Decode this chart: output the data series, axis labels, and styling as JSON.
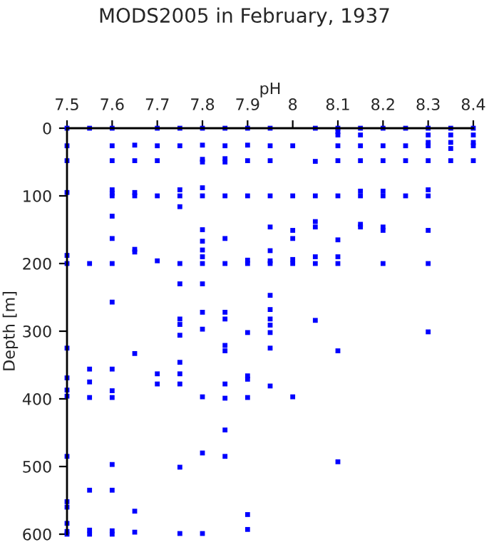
{
  "chart_data": {
    "type": "scatter",
    "title": "MODS2005 in February, 1937",
    "xlabel": "pH",
    "ylabel": "Depth [m]",
    "xlim": [
      7.5,
      8.4
    ],
    "xticks": [
      7.5,
      7.6,
      7.7,
      7.8,
      7.9,
      {
        "value": 8.0,
        "label": "8"
      },
      8.1,
      8.2,
      8.3,
      8.4
    ],
    "ylim": [
      600,
      0
    ],
    "yticks": [
      0,
      100,
      200,
      300,
      400,
      500,
      600
    ],
    "grid": false,
    "marker": "square",
    "series": [
      {
        "color": "#0000ff",
        "x": [
          7.5,
          7.5,
          7.5,
          7.5,
          7.5,
          7.5,
          7.5,
          7.5,
          7.5,
          7.5,
          7.5,
          7.5,
          7.5,
          7.5,
          7.5,
          7.5,
          7.55,
          7.55,
          7.55,
          7.55,
          7.55,
          7.55,
          7.55,
          7.55,
          7.6,
          7.6,
          7.6,
          7.6,
          7.6,
          7.6,
          7.6,
          7.6,
          7.6,
          7.6,
          7.6,
          7.6,
          7.6,
          7.6,
          7.6,
          7.6,
          7.6,
          7.65,
          7.65,
          7.65,
          7.65,
          7.65,
          7.65,
          7.65,
          7.65,
          7.65,
          7.7,
          7.7,
          7.7,
          7.7,
          7.7,
          7.7,
          7.7,
          7.75,
          7.75,
          7.75,
          7.75,
          7.75,
          7.75,
          7.75,
          7.75,
          7.75,
          7.75,
          7.75,
          7.75,
          7.75,
          7.75,
          7.75,
          7.8,
          7.8,
          7.8,
          7.8,
          7.8,
          7.8,
          7.8,
          7.8,
          7.8,
          7.8,
          7.8,
          7.8,
          7.8,
          7.8,
          7.8,
          7.8,
          7.8,
          7.85,
          7.85,
          7.85,
          7.85,
          7.85,
          7.85,
          7.85,
          7.85,
          7.85,
          7.85,
          7.85,
          7.85,
          7.85,
          7.85,
          7.85,
          7.9,
          7.9,
          7.9,
          7.9,
          7.9,
          7.9,
          7.9,
          7.9,
          7.9,
          7.9,
          7.9,
          7.9,
          7.95,
          7.95,
          7.95,
          7.95,
          7.95,
          7.95,
          7.95,
          7.95,
          7.95,
          7.95,
          7.95,
          7.95,
          7.95,
          7.95,
          7.95,
          8.0,
          8.0,
          8.0,
          8.0,
          8.0,
          8.0,
          8.0,
          8.05,
          8.05,
          8.05,
          8.05,
          8.05,
          8.05,
          8.05,
          8.05,
          8.1,
          8.1,
          8.1,
          8.1,
          8.1,
          8.1,
          8.1,
          8.1,
          8.1,
          8.1,
          8.1,
          8.15,
          8.15,
          8.15,
          8.15,
          8.15,
          8.15,
          8.15,
          8.15,
          8.2,
          8.2,
          8.2,
          8.2,
          8.2,
          8.2,
          8.2,
          8.2,
          8.25,
          8.25,
          8.25,
          8.25,
          8.3,
          8.3,
          8.3,
          8.3,
          8.3,
          8.3,
          8.3,
          8.3,
          8.3,
          8.3,
          8.35,
          8.35,
          8.35,
          8.35,
          8.35,
          8.4,
          8.4,
          8.4,
          8.4,
          8.4
        ],
        "values": [
          0,
          26,
          48,
          95,
          188,
          200,
          325,
          369,
          387,
          396,
          485,
          552,
          560,
          584,
          596,
          600,
          0,
          200,
          356,
          375,
          398,
          535,
          594,
          600,
          0,
          26,
          48,
          91,
          96,
          100,
          130,
          163,
          200,
          257,
          356,
          388,
          398,
          497,
          535,
          595,
          600,
          25,
          48,
          95,
          100,
          179,
          183,
          333,
          566,
          597,
          0,
          26,
          48,
          100,
          196,
          363,
          378,
          0,
          26,
          91,
          100,
          116,
          200,
          230,
          282,
          290,
          306,
          346,
          363,
          378,
          501,
          599,
          0,
          25,
          46,
          50,
          88,
          100,
          150,
          167,
          180,
          190,
          200,
          230,
          272,
          297,
          397,
          480,
          599,
          0,
          26,
          45,
          50,
          100,
          163,
          200,
          272,
          282,
          321,
          329,
          378,
          399,
          446,
          485,
          0,
          25,
          48,
          100,
          195,
          200,
          302,
          366,
          371,
          398,
          571,
          593,
          0,
          26,
          48,
          100,
          146,
          181,
          196,
          200,
          247,
          268,
          282,
          291,
          302,
          325,
          381,
          26,
          100,
          151,
          163,
          194,
          200,
          397,
          0,
          49,
          100,
          138,
          146,
          190,
          200,
          284,
          0,
          5,
          10,
          26,
          48,
          100,
          165,
          190,
          200,
          329,
          493,
          0,
          10,
          26,
          48,
          93,
          100,
          142,
          146,
          0,
          26,
          48,
          93,
          100,
          146,
          151,
          200,
          0,
          26,
          48,
          100,
          0,
          10,
          21,
          26,
          48,
          91,
          100,
          151,
          200,
          301,
          0,
          10,
          21,
          30,
          48,
          0,
          10,
          21,
          26,
          48
        ]
      }
    ]
  }
}
